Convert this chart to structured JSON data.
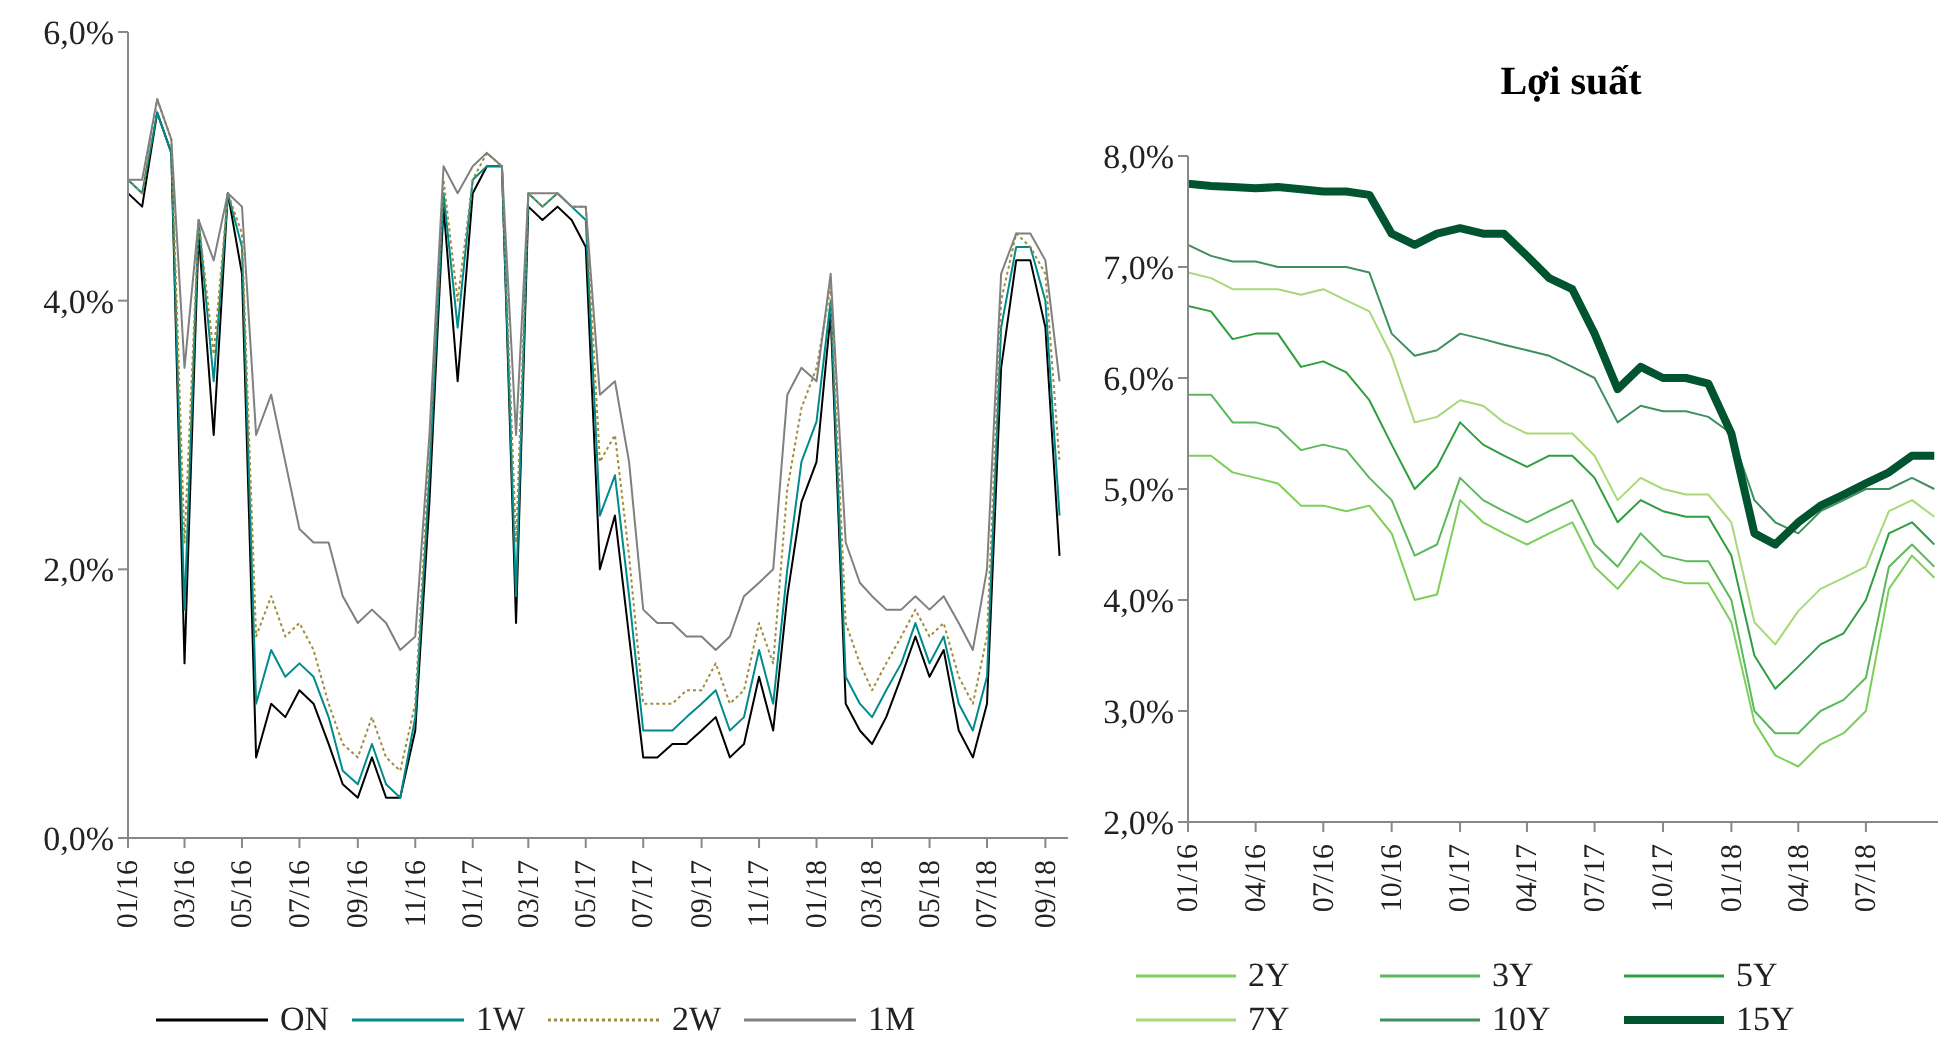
{
  "chart_data": [
    {
      "type": "line",
      "legend": "bottom",
      "ylim": [
        0,
        6
      ],
      "yticks": [
        {
          "value": 0,
          "label": "0,0%"
        },
        {
          "value": 2,
          "label": "2,0%"
        },
        {
          "value": 4,
          "label": "4,0%"
        },
        {
          "value": 6,
          "label": "6,0%"
        }
      ],
      "xlim": [
        "2016-01-01",
        "2018-09-25"
      ],
      "xticks": [
        {
          "value": "2016-01-01",
          "label": "01/16"
        },
        {
          "value": "2016-03-01",
          "label": "03/16"
        },
        {
          "value": "2016-05-01",
          "label": "05/16"
        },
        {
          "value": "2016-07-01",
          "label": "07/16"
        },
        {
          "value": "2016-09-01",
          "label": "09/16"
        },
        {
          "value": "2016-11-01",
          "label": "11/16"
        },
        {
          "value": "2017-01-01",
          "label": "01/17"
        },
        {
          "value": "2017-03-01",
          "label": "03/17"
        },
        {
          "value": "2017-05-01",
          "label": "05/17"
        },
        {
          "value": "2017-07-01",
          "label": "07/17"
        },
        {
          "value": "2017-09-01",
          "label": "09/17"
        },
        {
          "value": "2017-11-01",
          "label": "11/17"
        },
        {
          "value": "2018-01-01",
          "label": "01/18"
        },
        {
          "value": "2018-03-01",
          "label": "03/18"
        },
        {
          "value": "2018-05-01",
          "label": "05/18"
        },
        {
          "value": "2018-07-01",
          "label": "07/18"
        },
        {
          "value": "2018-09-01",
          "label": "09/18"
        }
      ],
      "x": [
        "2016-01-01",
        "2016-01-16",
        "2016-02-01",
        "2016-02-16",
        "2016-03-01",
        "2016-03-16",
        "2016-04-01",
        "2016-04-16",
        "2016-05-01",
        "2016-05-16",
        "2016-06-01",
        "2016-06-16",
        "2016-07-01",
        "2016-07-16",
        "2016-08-01",
        "2016-08-16",
        "2016-09-01",
        "2016-09-16",
        "2016-10-01",
        "2016-10-16",
        "2016-11-01",
        "2016-11-16",
        "2016-12-01",
        "2016-12-16",
        "2017-01-01",
        "2017-01-16",
        "2017-02-01",
        "2017-02-16",
        "2017-03-01",
        "2017-03-16",
        "2017-04-01",
        "2017-04-16",
        "2017-05-01",
        "2017-05-16",
        "2017-06-01",
        "2017-06-16",
        "2017-07-01",
        "2017-07-16",
        "2017-08-01",
        "2017-08-16",
        "2017-09-01",
        "2017-09-16",
        "2017-10-01",
        "2017-10-16",
        "2017-11-01",
        "2017-11-16",
        "2017-12-01",
        "2017-12-16",
        "2018-01-01",
        "2018-01-16",
        "2018-02-01",
        "2018-02-16",
        "2018-03-01",
        "2018-03-16",
        "2018-04-01",
        "2018-04-16",
        "2018-05-01",
        "2018-05-16",
        "2018-06-01",
        "2018-06-16",
        "2018-07-01",
        "2018-07-16",
        "2018-08-01",
        "2018-08-16",
        "2018-09-01",
        "2018-09-16"
      ],
      "series": [
        {
          "name": "ON",
          "color": "#000000",
          "line_style": "solid",
          "values": [
            4.8,
            4.7,
            5.4,
            5.1,
            1.3,
            4.5,
            3.0,
            4.8,
            4.2,
            0.6,
            1.0,
            0.9,
            1.1,
            1.0,
            0.7,
            0.4,
            0.3,
            0.6,
            0.3,
            0.3,
            0.8,
            2.5,
            4.7,
            3.4,
            4.8,
            5.0,
            5.0,
            1.6,
            4.7,
            4.6,
            4.7,
            4.6,
            4.4,
            2.0,
            2.4,
            1.5,
            0.6,
            0.6,
            0.7,
            0.7,
            0.8,
            0.9,
            0.6,
            0.7,
            1.2,
            0.8,
            1.8,
            2.5,
            2.8,
            3.9,
            1.0,
            0.8,
            0.7,
            0.9,
            1.2,
            1.5,
            1.2,
            1.4,
            0.8,
            0.6,
            1.0,
            3.5,
            4.3,
            4.3,
            3.8,
            2.1
          ]
        },
        {
          "name": "1W",
          "color": "#008b8b",
          "line_style": "solid",
          "values": [
            4.9,
            4.8,
            5.4,
            5.1,
            1.7,
            4.6,
            3.4,
            4.8,
            4.4,
            1.0,
            1.4,
            1.2,
            1.3,
            1.2,
            0.9,
            0.5,
            0.4,
            0.7,
            0.4,
            0.3,
            0.9,
            2.7,
            4.8,
            3.8,
            4.9,
            5.0,
            5.0,
            1.8,
            4.8,
            4.7,
            4.8,
            4.7,
            4.6,
            2.4,
            2.7,
            1.8,
            0.8,
            0.8,
            0.8,
            0.9,
            1.0,
            1.1,
            0.8,
            0.9,
            1.4,
            1.0,
            2.0,
            2.8,
            3.1,
            4.0,
            1.2,
            1.0,
            0.9,
            1.1,
            1.3,
            1.6,
            1.3,
            1.5,
            1.0,
            0.8,
            1.2,
            3.8,
            4.4,
            4.4,
            4.0,
            2.4
          ]
        },
        {
          "name": "2W",
          "color": "#a08c40",
          "line_style": "dotted",
          "values": [
            4.9,
            4.8,
            5.5,
            5.2,
            2.2,
            4.6,
            3.6,
            4.8,
            4.5,
            1.5,
            1.8,
            1.5,
            1.6,
            1.4,
            1.0,
            0.7,
            0.6,
            0.9,
            0.6,
            0.5,
            1.0,
            2.9,
            4.9,
            4.0,
            4.9,
            5.1,
            5.0,
            2.2,
            4.8,
            4.7,
            4.8,
            4.7,
            4.7,
            2.8,
            3.0,
            2.1,
            1.0,
            1.0,
            1.0,
            1.1,
            1.1,
            1.3,
            1.0,
            1.1,
            1.6,
            1.3,
            2.6,
            3.2,
            3.5,
            4.1,
            1.6,
            1.3,
            1.1,
            1.3,
            1.5,
            1.7,
            1.5,
            1.6,
            1.2,
            1.0,
            1.5,
            4.0,
            4.5,
            4.4,
            4.2,
            2.8
          ]
        },
        {
          "name": "1M",
          "color": "#808080",
          "line_style": "solid",
          "values": [
            4.9,
            4.9,
            5.5,
            5.2,
            3.5,
            4.6,
            4.3,
            4.8,
            4.7,
            3.0,
            3.3,
            2.8,
            2.3,
            2.2,
            2.2,
            1.8,
            1.6,
            1.7,
            1.6,
            1.4,
            1.5,
            3.0,
            5.0,
            4.8,
            5.0,
            5.1,
            5.0,
            3.0,
            4.8,
            4.8,
            4.8,
            4.7,
            4.7,
            3.3,
            3.4,
            2.8,
            1.7,
            1.6,
            1.6,
            1.5,
            1.5,
            1.4,
            1.5,
            1.8,
            1.9,
            2.0,
            3.3,
            3.5,
            3.4,
            4.2,
            2.2,
            1.9,
            1.8,
            1.7,
            1.7,
            1.8,
            1.7,
            1.8,
            1.6,
            1.4,
            2.0,
            4.2,
            4.5,
            4.5,
            4.3,
            3.4
          ]
        }
      ]
    },
    {
      "type": "line",
      "title": "Lợi suất",
      "legend": "bottom",
      "ylim": [
        2,
        8
      ],
      "yticks": [
        {
          "value": 2,
          "label": "2,0%"
        },
        {
          "value": 3,
          "label": "3,0%"
        },
        {
          "value": 4,
          "label": "4,0%"
        },
        {
          "value": 5,
          "label": "5,0%"
        },
        {
          "value": 6,
          "label": "6,0%"
        },
        {
          "value": 7,
          "label": "7,0%"
        },
        {
          "value": 8,
          "label": "8,0%"
        }
      ],
      "xlim": [
        "2016-01-01",
        "2018-10-06"
      ],
      "xticks": [
        {
          "value": "2016-01-01",
          "label": "01/16"
        },
        {
          "value": "2016-04-01",
          "label": "04/16"
        },
        {
          "value": "2016-07-01",
          "label": "07/16"
        },
        {
          "value": "2016-10-01",
          "label": "10/16"
        },
        {
          "value": "2017-01-01",
          "label": "01/17"
        },
        {
          "value": "2017-04-01",
          "label": "04/17"
        },
        {
          "value": "2017-07-01",
          "label": "07/17"
        },
        {
          "value": "2017-10-01",
          "label": "10/17"
        },
        {
          "value": "2018-01-01",
          "label": "01/18"
        },
        {
          "value": "2018-04-01",
          "label": "04/18"
        },
        {
          "value": "2018-07-01",
          "label": "07/18"
        }
      ],
      "x": [
        "2016-01",
        "2016-02",
        "2016-03",
        "2016-04",
        "2016-05",
        "2016-06",
        "2016-07",
        "2016-08",
        "2016-09",
        "2016-10",
        "2016-11",
        "2016-12",
        "2017-01",
        "2017-02",
        "2017-03",
        "2017-04",
        "2017-05",
        "2017-06",
        "2017-07",
        "2017-08",
        "2017-09",
        "2017-10",
        "2017-11",
        "2017-12",
        "2018-01",
        "2018-02",
        "2018-03",
        "2018-04",
        "2018-05",
        "2018-06",
        "2018-07",
        "2018-08",
        "2018-09",
        "2018-10"
      ],
      "series": [
        {
          "name": "2Y",
          "color": "#7dcf5a",
          "values": [
            5.3,
            5.3,
            5.15,
            5.1,
            5.05,
            4.85,
            4.85,
            4.8,
            4.85,
            4.6,
            4.0,
            4.05,
            4.9,
            4.7,
            4.6,
            4.5,
            4.6,
            4.7,
            4.3,
            4.1,
            4.35,
            4.2,
            4.15,
            4.15,
            3.8,
            2.9,
            2.6,
            2.5,
            2.7,
            2.8,
            3.0,
            4.1,
            4.4,
            4.2
          ]
        },
        {
          "name": "3Y",
          "color": "#5cb85c",
          "values": [
            5.85,
            5.85,
            5.6,
            5.6,
            5.55,
            5.35,
            5.4,
            5.35,
            5.1,
            4.9,
            4.4,
            4.5,
            5.1,
            4.9,
            4.8,
            4.7,
            4.8,
            4.9,
            4.5,
            4.3,
            4.6,
            4.4,
            4.35,
            4.35,
            4.0,
            3.0,
            2.8,
            2.8,
            3.0,
            3.1,
            3.3,
            4.3,
            4.5,
            4.3
          ]
        },
        {
          "name": "5Y",
          "color": "#2e9e3e",
          "values": [
            6.65,
            6.6,
            6.35,
            6.4,
            6.4,
            6.1,
            6.15,
            6.05,
            5.8,
            5.4,
            5.0,
            5.2,
            5.6,
            5.4,
            5.3,
            5.2,
            5.3,
            5.3,
            5.1,
            4.7,
            4.9,
            4.8,
            4.75,
            4.75,
            4.4,
            3.5,
            3.2,
            3.4,
            3.6,
            3.7,
            4.0,
            4.6,
            4.7,
            4.5
          ]
        },
        {
          "name": "7Y",
          "color": "#a8d878",
          "values": [
            6.95,
            6.9,
            6.8,
            6.8,
            6.8,
            6.75,
            6.8,
            6.7,
            6.6,
            6.2,
            5.6,
            5.65,
            5.8,
            5.75,
            5.6,
            5.5,
            5.5,
            5.5,
            5.3,
            4.9,
            5.1,
            5.0,
            4.95,
            4.95,
            4.7,
            3.8,
            3.6,
            3.9,
            4.1,
            4.2,
            4.3,
            4.8,
            4.9,
            4.75
          ]
        },
        {
          "name": "10Y",
          "color": "#3f8f5f",
          "values": [
            7.2,
            7.1,
            7.05,
            7.05,
            7.0,
            7.0,
            7.0,
            7.0,
            6.95,
            6.4,
            6.2,
            6.25,
            6.4,
            6.35,
            6.3,
            6.25,
            6.2,
            6.1,
            6.0,
            5.6,
            5.75,
            5.7,
            5.7,
            5.65,
            5.5,
            4.9,
            4.7,
            4.6,
            4.8,
            4.9,
            5.0,
            5.0,
            5.1,
            5.0
          ]
        },
        {
          "name": "15Y",
          "color": "#00542f",
          "values": [
            7.75,
            7.73,
            7.72,
            7.71,
            7.72,
            7.7,
            7.68,
            7.68,
            7.65,
            7.3,
            7.2,
            7.3,
            7.35,
            7.3,
            7.3,
            7.1,
            6.9,
            6.8,
            6.4,
            5.9,
            6.1,
            6.0,
            6.0,
            5.95,
            5.5,
            4.6,
            4.5,
            4.7,
            4.85,
            4.95,
            5.05,
            5.15,
            5.3,
            5.3
          ]
        }
      ]
    }
  ]
}
